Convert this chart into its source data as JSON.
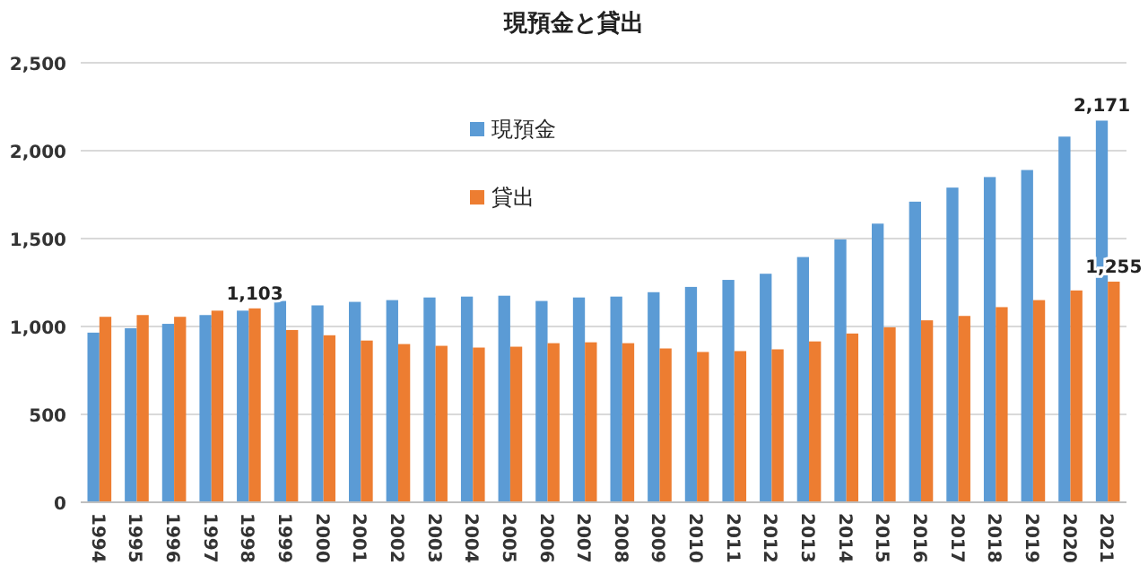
{
  "chart_data": {
    "type": "bar",
    "title": "現預金と貸出",
    "categories": [
      "1994",
      "1995",
      "1996",
      "1997",
      "1998",
      "1999",
      "2000",
      "2001",
      "2002",
      "2003",
      "2004",
      "2005",
      "2006",
      "2007",
      "2008",
      "2009",
      "2010",
      "2011",
      "2012",
      "2013",
      "2014",
      "2015",
      "2016",
      "2017",
      "2018",
      "2019",
      "2020",
      "2021"
    ],
    "series": [
      {
        "name": "現預金",
        "color": "#5b9bd5",
        "values": [
          965,
          990,
          1015,
          1065,
          1090,
          1145,
          1120,
          1140,
          1150,
          1165,
          1170,
          1175,
          1145,
          1165,
          1170,
          1195,
          1225,
          1265,
          1300,
          1395,
          1495,
          1585,
          1710,
          1790,
          1850,
          1890,
          2080,
          2171
        ],
        "value_labels": [
          null,
          null,
          null,
          null,
          null,
          null,
          null,
          null,
          null,
          null,
          null,
          null,
          null,
          null,
          null,
          null,
          null,
          null,
          null,
          null,
          null,
          null,
          null,
          null,
          null,
          null,
          null,
          "2,171"
        ]
      },
      {
        "name": "貸出",
        "color": "#ed7d31",
        "values": [
          1055,
          1065,
          1055,
          1090,
          1103,
          980,
          950,
          920,
          900,
          890,
          880,
          885,
          905,
          910,
          905,
          875,
          855,
          860,
          870,
          915,
          960,
          995,
          1035,
          1060,
          1110,
          1150,
          1205,
          1255
        ],
        "value_labels": [
          null,
          null,
          null,
          null,
          "1,103",
          null,
          null,
          null,
          null,
          null,
          null,
          null,
          null,
          null,
          null,
          null,
          null,
          null,
          null,
          null,
          null,
          null,
          null,
          null,
          null,
          null,
          null,
          "1,255"
        ]
      }
    ],
    "ylim": [
      0,
      2500
    ],
    "yticks": [
      {
        "value": 0,
        "label": "0"
      },
      {
        "value": 500,
        "label": "500"
      },
      {
        "value": 1000,
        "label": "1,000"
      },
      {
        "value": 1500,
        "label": "1,500"
      },
      {
        "value": 2000,
        "label": "2,000"
      },
      {
        "value": 2500,
        "label": "2,500"
      }
    ],
    "grid": "y",
    "legend": "top"
  }
}
